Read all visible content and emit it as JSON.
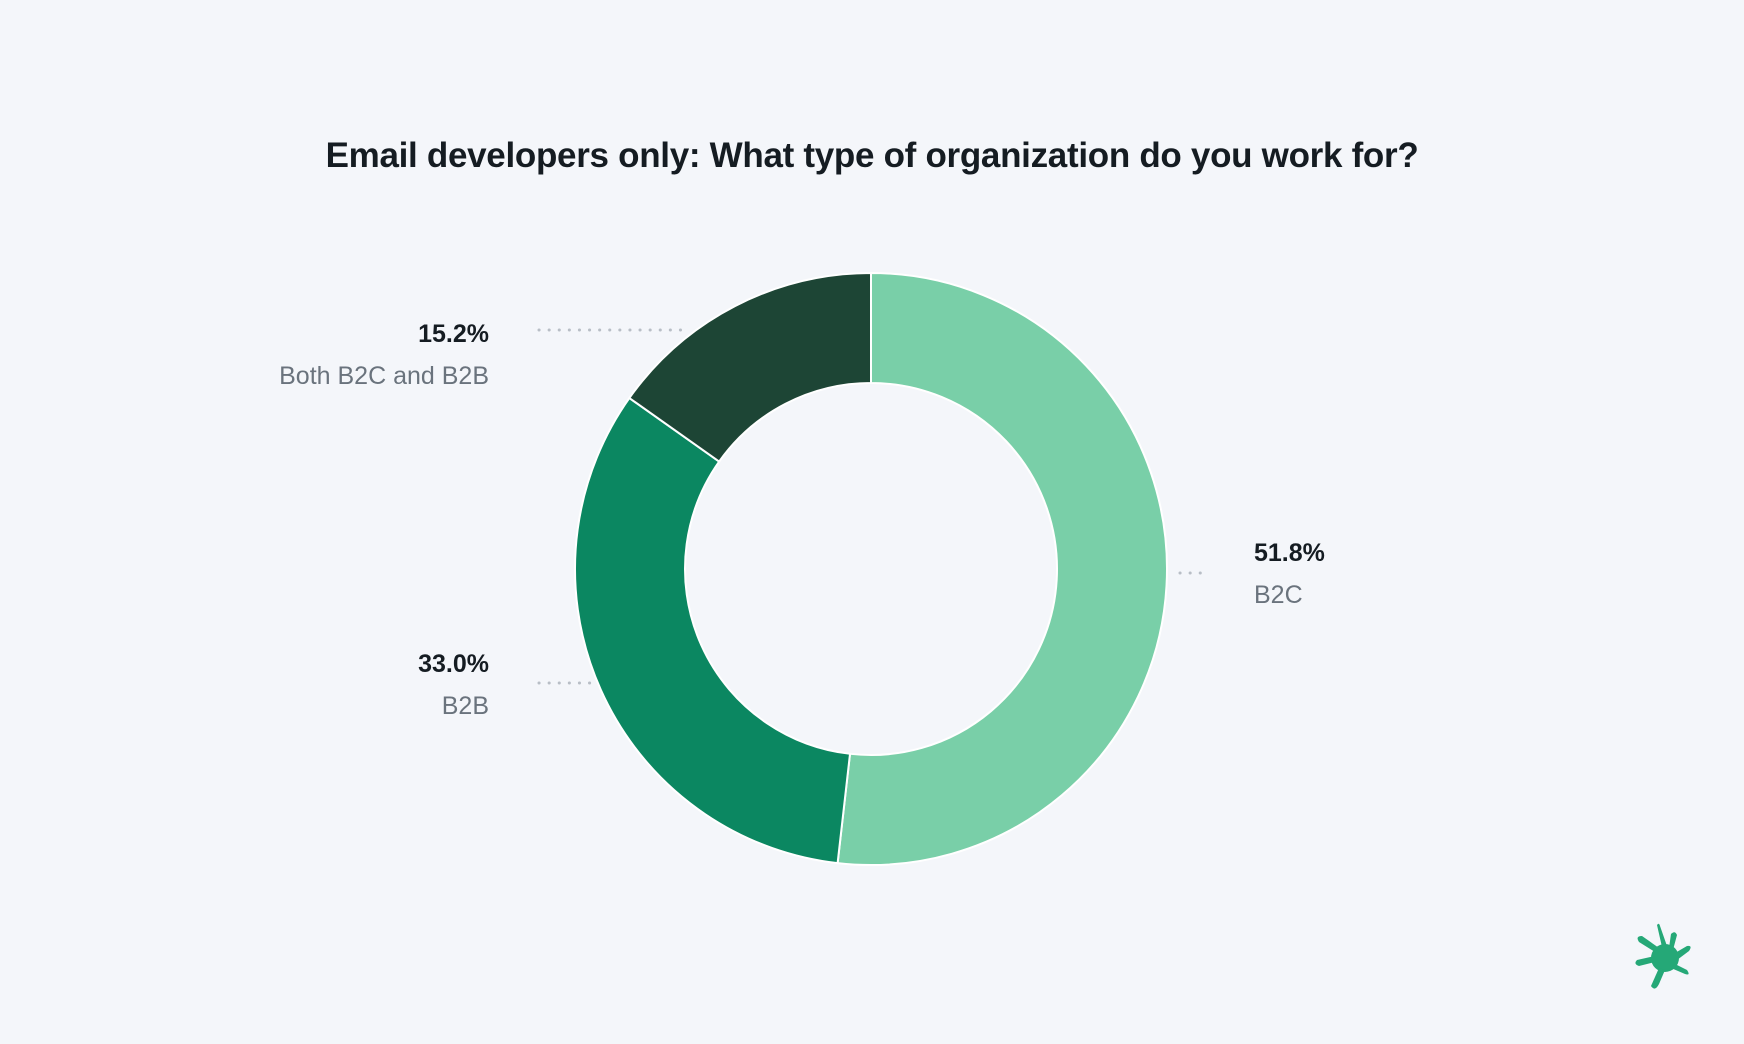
{
  "chart_data": {
    "type": "pie",
    "variant": "donut",
    "title": "Email developers only: What type of organization do you work for?",
    "slices": [
      {
        "label": "B2C",
        "value": 51.8,
        "display": "51.8%",
        "color": "#79cfa8"
      },
      {
        "label": "B2B",
        "value": 33.0,
        "display": "33.0%",
        "color": "#0b8761"
      },
      {
        "label": "Both B2C and B2B",
        "value": 15.2,
        "display": "15.2%",
        "color": "#1d4535"
      }
    ],
    "legend": "none (direct labels)"
  },
  "colors": {
    "background": "#f4f6fa",
    "logo": "#25a877"
  }
}
